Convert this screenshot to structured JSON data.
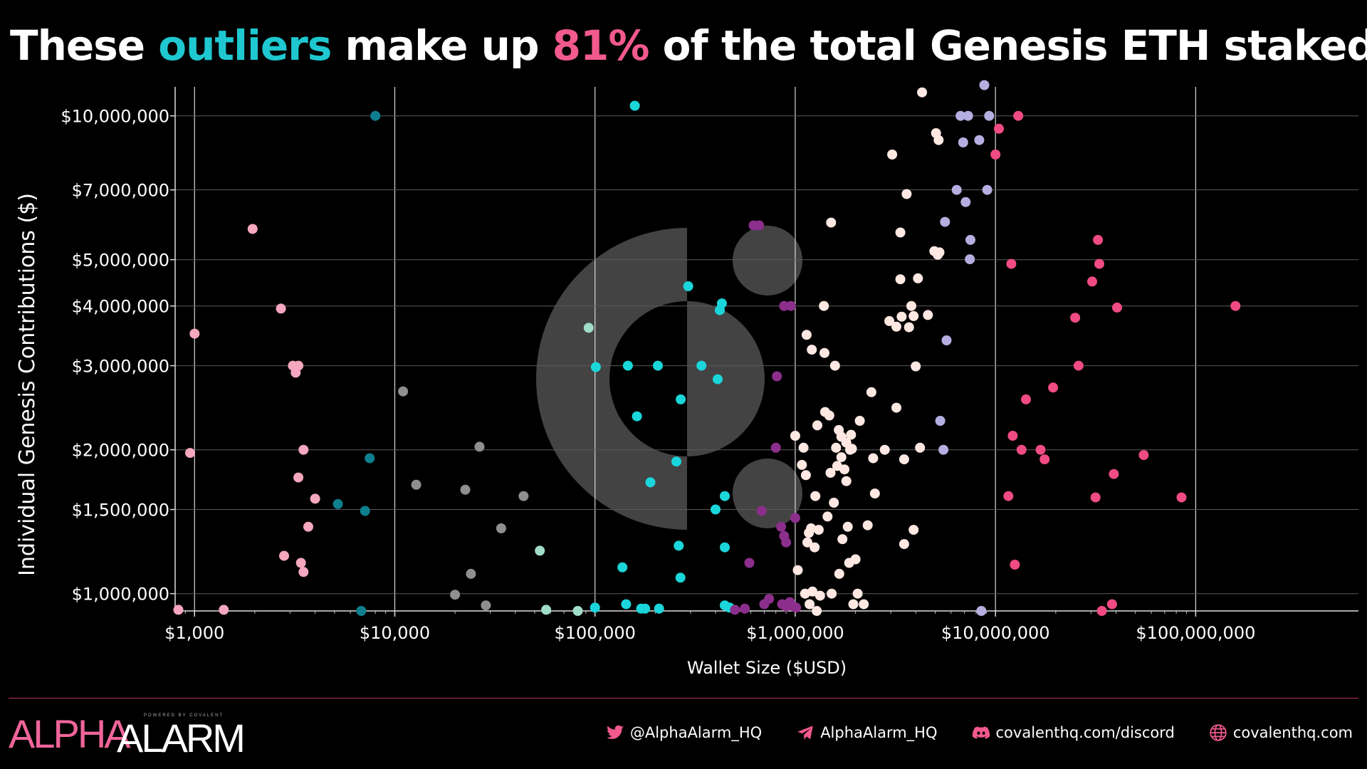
{
  "title": {
    "part1": "These ",
    "highlight1": "outliers",
    "part2": " make up ",
    "highlight2": "81%",
    "part3": " of the total Genesis ETH staked..."
  },
  "colors": {
    "teal_highlight": "#1fc8d0",
    "pink_highlight": "#f25a8c",
    "background": "#000000"
  },
  "chart_data": {
    "type": "scatter",
    "xscale": "log",
    "yscale": "log",
    "xlabel": "Wallet Size ($USD)",
    "ylabel": "Individual Genesis Contributions ($)",
    "xlim": [
      800,
      650000000
    ],
    "ylim": [
      920000,
      11500000
    ],
    "x_ticks": [
      {
        "value": 1000,
        "label": "$1,000"
      },
      {
        "value": 10000,
        "label": "$10,000"
      },
      {
        "value": 100000,
        "label": "$100,000"
      },
      {
        "value": 1000000,
        "label": "$1,000,000"
      },
      {
        "value": 10000000,
        "label": "$10,000,000"
      },
      {
        "value": 100000000,
        "label": "$100,000,000"
      }
    ],
    "y_ticks": [
      {
        "value": 1000000,
        "label": "$1,000,000"
      },
      {
        "value": 1500000,
        "label": "$1,500,000"
      },
      {
        "value": 2000000,
        "label": "$2,000,000"
      },
      {
        "value": 3000000,
        "label": "$3,000,000"
      },
      {
        "value": 4000000,
        "label": "$4,000,000"
      },
      {
        "value": 5000000,
        "label": "$5,000,000"
      },
      {
        "value": 7000000,
        "label": "$7,000,000"
      },
      {
        "value": 10000000,
        "label": "$10,000,000"
      }
    ],
    "grid": true,
    "series": [
      {
        "color": "#f4a7be",
        "points": [
          [
            830,
            925000
          ],
          [
            950,
            1970000
          ],
          [
            1000,
            3500000
          ],
          [
            1400,
            925000
          ],
          [
            1950,
            5800000
          ],
          [
            2700,
            3950000
          ],
          [
            2800,
            1200000
          ],
          [
            3100,
            3000000
          ],
          [
            3200,
            2900000
          ],
          [
            3300,
            3000000
          ],
          [
            3300,
            1750000
          ],
          [
            3400,
            1160000
          ],
          [
            3500,
            1110000
          ],
          [
            3500,
            2000000
          ],
          [
            3700,
            1380000
          ],
          [
            4000,
            1580000
          ]
        ]
      },
      {
        "color": "#0e7f8f",
        "points": [
          [
            5200,
            1540000
          ],
          [
            7100,
            1490000
          ],
          [
            7500,
            1920000
          ],
          [
            8000,
            10000000
          ],
          [
            6800,
            920000
          ]
        ]
      },
      {
        "color": "#8f8f8f",
        "points": [
          [
            11000,
            2650000
          ],
          [
            12800,
            1690000
          ],
          [
            20000,
            995000
          ],
          [
            22500,
            1650000
          ],
          [
            24000,
            1100000
          ],
          [
            26500,
            2030000
          ],
          [
            28500,
            945000
          ],
          [
            34000,
            1370000
          ],
          [
            44000,
            1600000
          ]
        ]
      },
      {
        "color": "#a0dcc8",
        "points": [
          [
            53000,
            1230000
          ],
          [
            57000,
            925000
          ],
          [
            82000,
            920000
          ],
          [
            93000,
            3600000
          ]
        ]
      },
      {
        "color": "#1ad6da",
        "points": [
          [
            100000,
            935000
          ],
          [
            101000,
            2980000
          ],
          [
            137000,
            1135000
          ],
          [
            143000,
            950000
          ],
          [
            146000,
            3000000
          ],
          [
            158000,
            10500000
          ],
          [
            162000,
            2350000
          ],
          [
            170000,
            930000
          ],
          [
            178000,
            930000
          ],
          [
            189000,
            1710000
          ],
          [
            206000,
            3000000
          ],
          [
            209000,
            930000
          ],
          [
            255000,
            1890000
          ],
          [
            262000,
            1260000
          ],
          [
            268000,
            2550000
          ],
          [
            267000,
            1080000
          ],
          [
            292000,
            4400000
          ],
          [
            340000,
            3000000
          ],
          [
            400000,
            1500000
          ],
          [
            410000,
            2810000
          ],
          [
            420000,
            3920000
          ],
          [
            430000,
            4050000
          ],
          [
            445000,
            1600000
          ],
          [
            445000,
            945000
          ],
          [
            445000,
            1250000
          ],
          [
            470000,
            935000
          ]
        ]
      },
      {
        "color": "#8c2f8c",
        "points": [
          [
            500000,
            925000
          ],
          [
            560000,
            930000
          ],
          [
            590000,
            1160000
          ],
          [
            620000,
            5900000
          ],
          [
            660000,
            5900000
          ],
          [
            680000,
            1490000
          ],
          [
            700000,
            950000
          ],
          [
            740000,
            975000
          ],
          [
            800000,
            2020000
          ],
          [
            810000,
            2850000
          ],
          [
            850000,
            1380000
          ],
          [
            880000,
            1320000
          ],
          [
            900000,
            1280000
          ],
          [
            860000,
            950000
          ],
          [
            900000,
            940000
          ],
          [
            940000,
            960000
          ],
          [
            980000,
            940000
          ],
          [
            1000000,
            1440000
          ],
          [
            1010000,
            935000
          ],
          [
            880000,
            4000000
          ],
          [
            950000,
            4000000
          ]
        ]
      },
      {
        "color": "#ffe8e2",
        "points": [
          [
            1000000,
            2140000
          ],
          [
            1030000,
            1120000
          ],
          [
            1080000,
            1860000
          ],
          [
            1100000,
            2020000
          ],
          [
            1120000,
            1000000
          ],
          [
            1130000,
            1770000
          ],
          [
            1140000,
            3480000
          ],
          [
            1150000,
            1280000
          ],
          [
            1170000,
            1340000
          ],
          [
            1180000,
            950000
          ],
          [
            1200000,
            1370000
          ],
          [
            1220000,
            1010000
          ],
          [
            1210000,
            3240000
          ],
          [
            1250000,
            1250000
          ],
          [
            1260000,
            1600000
          ],
          [
            1280000,
            920000
          ],
          [
            1290000,
            2250000
          ],
          [
            1310000,
            1360000
          ],
          [
            1330000,
            990000
          ],
          [
            1390000,
            4000000
          ],
          [
            1400000,
            3190000
          ],
          [
            1410000,
            2400000
          ],
          [
            1450000,
            1450000
          ],
          [
            1480000,
            2360000
          ],
          [
            1500000,
            1790000
          ],
          [
            1510000,
            5980000
          ],
          [
            1520000,
            1000000
          ],
          [
            1560000,
            1550000
          ],
          [
            1580000,
            3000000
          ],
          [
            1600000,
            2020000
          ],
          [
            1620000,
            1850000
          ],
          [
            1650000,
            2200000
          ],
          [
            1660000,
            1100000
          ],
          [
            1700000,
            2130000
          ],
          [
            1700000,
            1930000
          ],
          [
            1720000,
            1300000
          ],
          [
            1760000,
            1820000
          ],
          [
            1800000,
            1720000
          ],
          [
            1800000,
            2070000
          ],
          [
            1830000,
            1380000
          ],
          [
            1860000,
            1160000
          ],
          [
            1880000,
            2000000
          ],
          [
            1900000,
            2150000
          ],
          [
            1920000,
            2010000
          ],
          [
            1950000,
            950000
          ],
          [
            2000000,
            1180000
          ],
          [
            2050000,
            1000000
          ],
          [
            2100000,
            2300000
          ],
          [
            2200000,
            950000
          ],
          [
            2300000,
            1390000
          ],
          [
            2400000,
            2640000
          ],
          [
            2500000,
            1620000
          ],
          [
            2450000,
            1920000
          ],
          [
            2800000,
            2000000
          ],
          [
            2950000,
            3720000
          ],
          [
            3050000,
            8300000
          ],
          [
            3200000,
            3620000
          ],
          [
            3200000,
            2450000
          ],
          [
            3350000,
            5700000
          ],
          [
            3350000,
            4550000
          ],
          [
            3400000,
            3800000
          ],
          [
            3500000,
            1910000
          ],
          [
            3500000,
            1270000
          ],
          [
            3600000,
            6860000
          ],
          [
            3700000,
            3610000
          ],
          [
            3800000,
            4000000
          ],
          [
            3900000,
            3810000
          ],
          [
            3900000,
            1360000
          ],
          [
            4000000,
            2990000
          ],
          [
            4100000,
            4570000
          ],
          [
            4200000,
            2020000
          ],
          [
            4300000,
            11200000
          ],
          [
            4600000,
            3830000
          ],
          [
            4950000,
            5210000
          ],
          [
            5050000,
            9200000
          ],
          [
            5150000,
            5120000
          ],
          [
            5200000,
            8900000
          ],
          [
            5250000,
            5180000
          ]
        ]
      },
      {
        "color": "#b5aee0",
        "points": [
          [
            5300000,
            2300000
          ],
          [
            5500000,
            2000000
          ],
          [
            5700000,
            3390000
          ],
          [
            5600000,
            6000000
          ],
          [
            6400000,
            7000000
          ],
          [
            6700000,
            10000000
          ],
          [
            6900000,
            8800000
          ],
          [
            7300000,
            10000000
          ],
          [
            7100000,
            6600000
          ],
          [
            7450000,
            5010000
          ],
          [
            7500000,
            5500000
          ],
          [
            8300000,
            8900000
          ],
          [
            8500000,
            920000
          ],
          [
            8800000,
            11600000
          ],
          [
            9100000,
            7000000
          ],
          [
            9300000,
            10000000
          ]
        ]
      },
      {
        "color": "#f04b82",
        "points": [
          [
            10000000,
            8300000
          ],
          [
            10400000,
            9400000
          ],
          [
            11600000,
            1600000
          ],
          [
            12000000,
            4900000
          ],
          [
            12200000,
            2140000
          ],
          [
            12500000,
            1150000
          ],
          [
            13000000,
            10000000
          ],
          [
            13500000,
            2000000
          ],
          [
            14200000,
            2550000
          ],
          [
            16800000,
            2000000
          ],
          [
            17600000,
            1910000
          ],
          [
            19400000,
            2700000
          ],
          [
            25000000,
            3780000
          ],
          [
            26000000,
            3000000
          ],
          [
            30400000,
            4500000
          ],
          [
            31600000,
            1590000
          ],
          [
            32500000,
            5500000
          ],
          [
            33000000,
            4900000
          ],
          [
            34000000,
            920000
          ],
          [
            38200000,
            950000
          ],
          [
            39000000,
            1780000
          ],
          [
            40500000,
            3970000
          ],
          [
            55000000,
            1950000
          ],
          [
            85000000,
            1590000
          ],
          [
            158000000,
            4000000
          ]
        ]
      }
    ]
  },
  "footer": {
    "logo_alpha": "ALPHA",
    "logo_alarm": "ALARM",
    "logo_powered": "POWERED BY COVALENT",
    "twitter": "@AlphaAlarm_HQ",
    "telegram": "AlphaAlarm_HQ",
    "discord": "covalenthq.com/discord",
    "website": "covalenthq.com",
    "icon_color": "#f25a8c"
  }
}
